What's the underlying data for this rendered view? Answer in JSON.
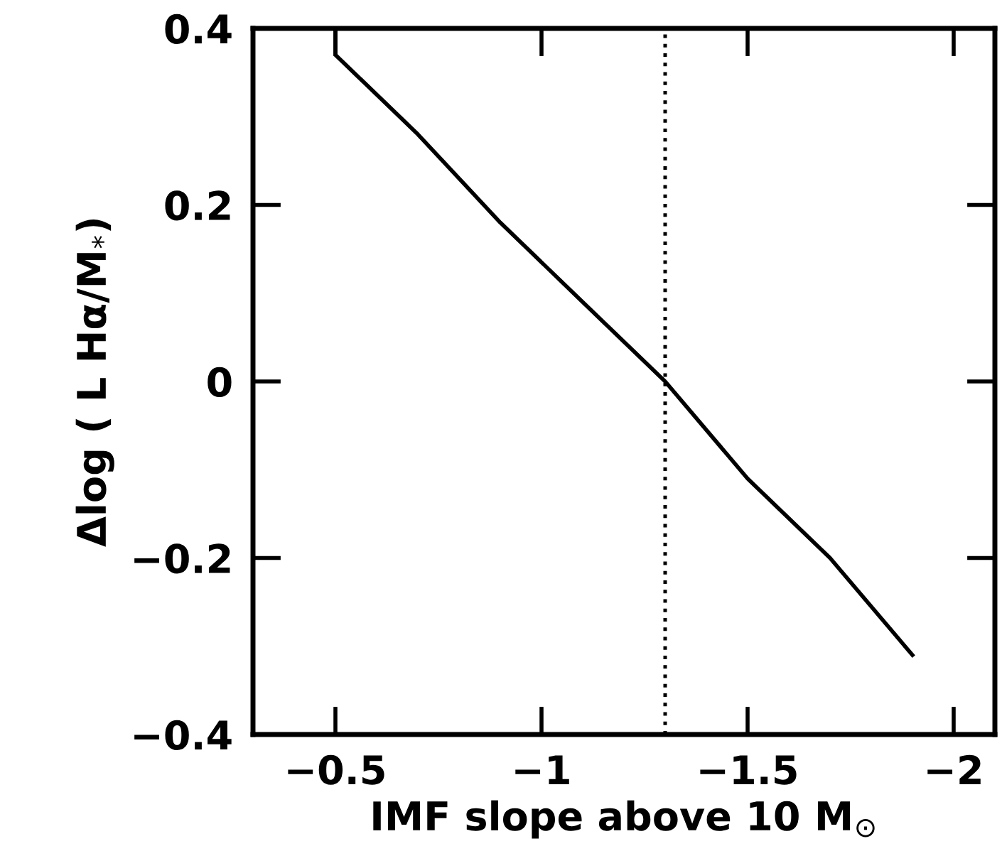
{
  "chart_data": {
    "type": "line",
    "xlabel": "IMF slope above 10 M$_{⊙}$",
    "ylabel": "Δlog ( L Hα/M$_{*}$)",
    "x": [
      -0.5,
      -0.5,
      -0.7,
      -0.9,
      -1.1,
      -1.3,
      -1.5,
      -1.7,
      -1.9
    ],
    "series": [
      {
        "color": "#000000",
        "values": [
          0.4,
          0.37,
          0.28,
          0.18,
          0.09,
          0.0,
          -0.11,
          -0.2,
          -0.31
        ]
      }
    ],
    "xlim": [
      -0.3,
      -2.1
    ],
    "ylim": [
      -0.4,
      0.4
    ],
    "xticks": [
      {
        "value": -0.5,
        "label": "−0.5"
      },
      {
        "value": -1,
        "label": "−1"
      },
      {
        "value": -1.5,
        "label": "−1.5"
      },
      {
        "value": -2,
        "label": "−2"
      }
    ],
    "yticks": [
      {
        "value": -0.4,
        "label": "−0.4"
      },
      {
        "value": -0.2,
        "label": "−0.2"
      },
      {
        "value": 0,
        "label": "0"
      },
      {
        "value": 0.2,
        "label": "0.2"
      },
      {
        "value": 0.4,
        "label": "0.4"
      }
    ],
    "ref_lines": [
      {
        "axis": "x",
        "value": -1.3,
        "label": null,
        "color": "#000000",
        "line_style": "dotted"
      }
    ],
    "grid": false,
    "legend": false,
    "marker": "none",
    "line_style": "solid"
  }
}
